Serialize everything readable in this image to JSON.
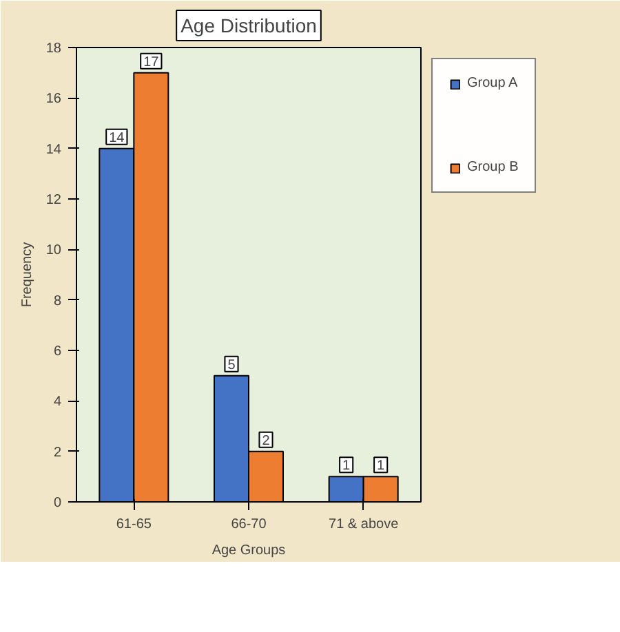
{
  "chart_data": {
    "type": "bar",
    "title": "Age Distribution",
    "xlabel": "Age Groups",
    "ylabel": "Frequency",
    "categories": [
      "61-65",
      "66-70",
      "71 & above"
    ],
    "series": [
      {
        "name": "Group A",
        "color": "#4472c4",
        "values": [
          14,
          5,
          1
        ]
      },
      {
        "name": "Group B",
        "color": "#ed7d31",
        "values": [
          17,
          2,
          1
        ]
      }
    ],
    "ylim": [
      0,
      18
    ],
    "yticks": [
      0,
      2,
      4,
      6,
      8,
      10,
      12,
      14,
      16,
      18
    ],
    "grid": false,
    "legend": "right",
    "data_labels": true
  }
}
